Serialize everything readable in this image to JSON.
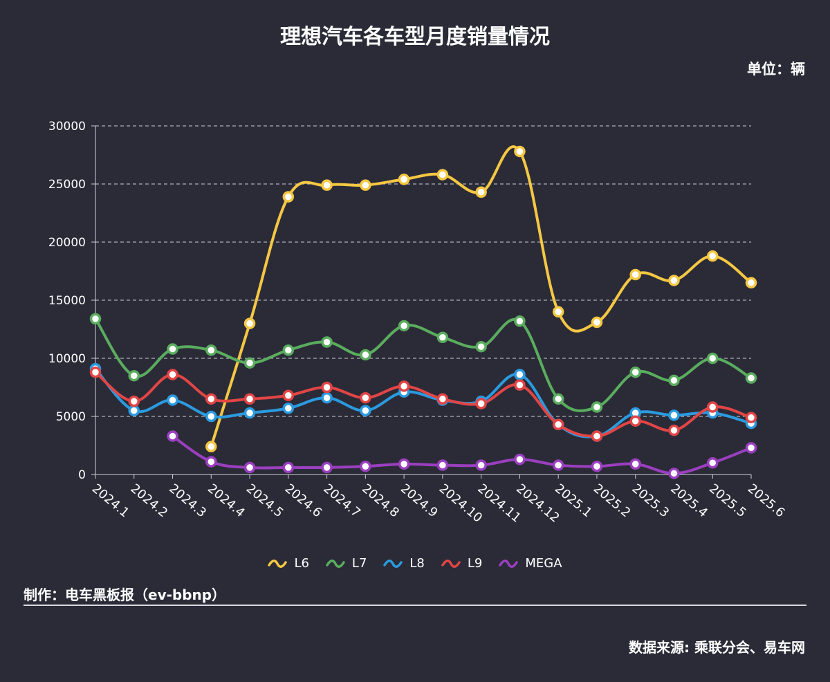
{
  "header": {
    "title": "理想汽车各车型月度销量情况",
    "unit": "单位：辆"
  },
  "footer": {
    "maker": "制作：电车黑板报（ev-bbnp）",
    "source": "数据来源: 乘联分会、易车网"
  },
  "chart_data": {
    "type": "line",
    "title": "理想汽车各车型月度销量情况",
    "ylabel": "单位：辆",
    "ylim": [
      0,
      30000
    ],
    "yticks": [
      0,
      5000,
      10000,
      15000,
      20000,
      25000,
      30000
    ],
    "grid": true,
    "smooth": true,
    "legend_position": "bottom",
    "categories": [
      "2024.1",
      "2024.2",
      "2024.3",
      "2024.4",
      "2024.5",
      "2024.6",
      "2024.7",
      "2024.8",
      "2024.9",
      "2024.10",
      "2024.11",
      "2024.12",
      "2025.1",
      "2025.2",
      "2025.3",
      "2025.4",
      "2025.5",
      "2025.6"
    ],
    "series": [
      {
        "name": "L6",
        "color": "#f5c842",
        "values": [
          null,
          null,
          null,
          2400,
          13000,
          23900,
          24900,
          24900,
          25400,
          25800,
          24300,
          27800,
          14000,
          13100,
          17200,
          16700,
          18800,
          16500
        ]
      },
      {
        "name": "L7",
        "color": "#5aad5e",
        "values": [
          13400,
          8500,
          10800,
          10700,
          9600,
          10700,
          11400,
          10300,
          12800,
          11800,
          11000,
          13200,
          6500,
          5800,
          8800,
          8100,
          10000,
          8300
        ]
      },
      {
        "name": "L8",
        "color": "#2b9be0",
        "values": [
          9100,
          5500,
          6400,
          5000,
          5300,
          5700,
          6600,
          5500,
          7100,
          6400,
          6300,
          8600,
          4300,
          3300,
          5300,
          5100,
          5300,
          4400
        ]
      },
      {
        "name": "L9",
        "color": "#e34545",
        "values": [
          8800,
          6300,
          8600,
          6500,
          6500,
          6800,
          7500,
          6600,
          7600,
          6500,
          6100,
          7700,
          4300,
          3300,
          4600,
          3800,
          5800,
          4900
        ]
      },
      {
        "name": "MEGA",
        "color": "#9b3fc0",
        "values": [
          null,
          null,
          3300,
          1100,
          600,
          600,
          600,
          700,
          900,
          800,
          800,
          1300,
          800,
          700,
          900,
          100,
          1000,
          2300
        ]
      }
    ]
  }
}
